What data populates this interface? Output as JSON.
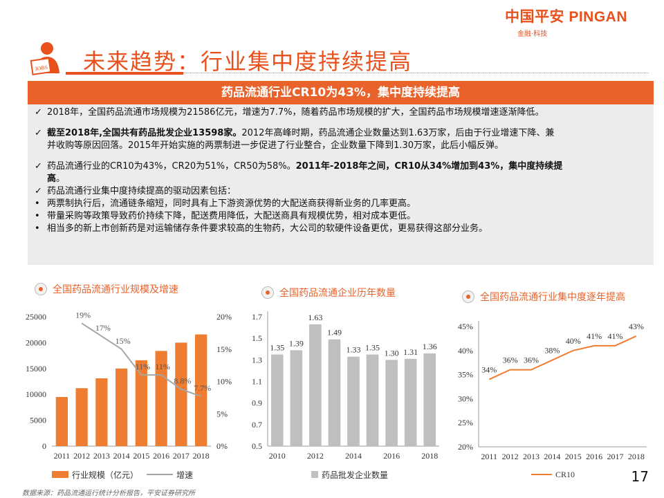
{
  "brand": {
    "name": "中国平安 PINGAN",
    "sub": "金融·科技",
    "accent": "#e8501c"
  },
  "icon_badge": "JOBS",
  "title": "未来趋势：行业集中度持续提高",
  "box": {
    "header": "药品流通行业CR10为43%，集中度持续提高",
    "lines": [
      {
        "m": "✓",
        "t": "2018年，全国药品流通市场规模为21586亿元，增速为7.7%，随着药品市场规模的扩大，全国药品市场规模增速逐渐降低。"
      },
      {
        "m": "✓",
        "b": "截至2018年,全国共有药品批发企业13598家。",
        "t": "2012年高峰时期，药品流通企业数量达到1.63万家，后由于行业增速下降、兼"
      },
      {
        "m": "",
        "t": "并收购等原因回落。2015年开始实施的两票制进一步促进了行业整合，企业数量下降到1.30万家，此后小幅反弹。"
      },
      {
        "m": "✓",
        "t": "药品流通行业的CR10为43%，CR20为51%，CR50为58%。",
        "b": "2011年-2018年之间，CR10从34%增加到43%，集中度持续提"
      },
      {
        "m": "",
        "b": "高",
        "t": "。"
      },
      {
        "m": "✓",
        "t": "药品流通行业集中度持续提高的驱动因素包括："
      },
      {
        "m": "•",
        "t": "两票制执行后，流通链条缩短，同时具有上下游资源优势的大配送商获得新业务的几率更高。"
      },
      {
        "m": "•",
        "t": "带量采购等政策导致药价持续下降，配送费用降低，大配送商具有规模优势，相对成本更低。"
      },
      {
        "m": "•",
        "t": "相当多的新上市创新药是对运输储存条件要求较高的生物药，大公司的软硬件设备更优，更易获得这部分业务。"
      }
    ]
  },
  "chart_data": [
    {
      "type": "bar",
      "title": "全国药品流通行业规模及增速",
      "categories": [
        "2011",
        "2012",
        "2013",
        "2014",
        "2015",
        "2016",
        "2017",
        "2018"
      ],
      "series": [
        {
          "name": "行业规模（亿元）",
          "type": "bar",
          "axis": "left",
          "values": [
            9500,
            11200,
            13100,
            15000,
            16600,
            18400,
            20000,
            21586
          ],
          "color": "#ee7d31"
        },
        {
          "name": "增速",
          "type": "line",
          "axis": "right",
          "values": [
            19,
            17,
            15,
            11,
            11,
            8.8,
            7.7
          ],
          "x": [
            "2012",
            "2013",
            "2014",
            "2015",
            "2016",
            "2017",
            "2018"
          ],
          "labels": [
            "19%",
            "17%",
            "15%",
            "11%",
            "11%",
            "8.8%",
            "7.7%"
          ],
          "color": "#a6a6a6"
        }
      ],
      "y_left": {
        "ticks": [
          "0",
          "5000",
          "10000",
          "15000",
          "20000",
          "25000"
        ],
        "range": [
          0,
          25000
        ]
      },
      "y_right": {
        "ticks": [
          "0%",
          "5%",
          "10%",
          "15%",
          "20%"
        ],
        "range": [
          0,
          20
        ]
      }
    },
    {
      "type": "bar",
      "title": "全国药品流通企业历年数量",
      "categories": [
        "2010",
        "2011",
        "2012",
        "2013",
        "2014",
        "2015",
        "2016",
        "2017",
        "2018"
      ],
      "x_tick_labels": [
        "2010",
        "2012",
        "2014",
        "2016",
        "2018"
      ],
      "series": [
        {
          "name": "药品批发企业数量",
          "values": [
            1.35,
            1.39,
            1.63,
            1.49,
            1.33,
            1.35,
            1.3,
            1.31,
            1.36
          ],
          "labels": [
            "1.35",
            "1.39",
            "1.63",
            "1.49",
            "1.33",
            "1.35",
            "1.30",
            "1.31",
            "1.36"
          ],
          "color": "#bfbfbf"
        }
      ],
      "y": {
        "ticks": [
          "0.5",
          "0.7",
          "0.9",
          "1.1",
          "1.3",
          "1.5",
          "1.7"
        ],
        "range": [
          0.5,
          1.7
        ]
      }
    },
    {
      "type": "line",
      "title": "全国药品流通行业集中度逐年提高",
      "categories": [
        "2011",
        "2012",
        "2013",
        "2014",
        "2015",
        "2016",
        "2017",
        "2018"
      ],
      "series": [
        {
          "name": "CR10",
          "values": [
            34,
            36,
            36,
            38,
            40,
            41,
            41,
            43
          ],
          "labels": [
            "34%",
            "36%",
            "36%",
            "38%",
            "40%",
            "41%",
            "41%",
            "43%"
          ],
          "color": "#ee7d31"
        }
      ],
      "y": {
        "ticks": [
          "20%",
          "25%",
          "30%",
          "35%",
          "40%",
          "45%"
        ],
        "range": [
          20,
          45
        ]
      }
    }
  ],
  "page_number": "17",
  "source": "数据来源：药品流通运行统计分析报告，平安证券研究所"
}
